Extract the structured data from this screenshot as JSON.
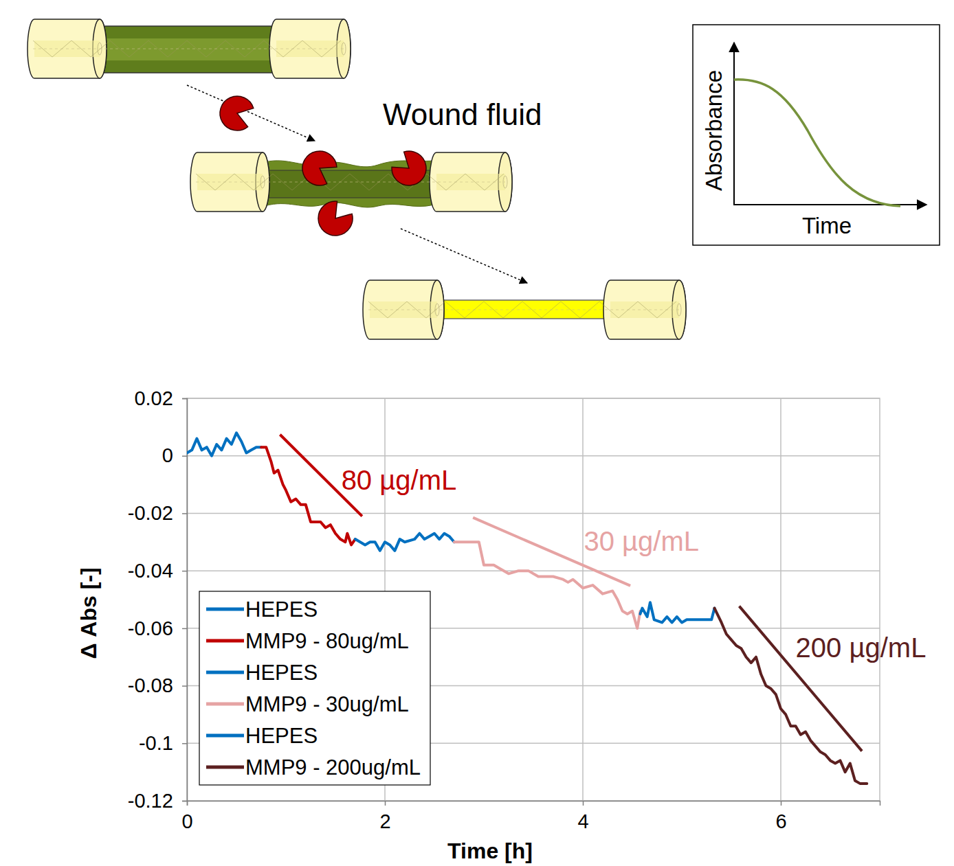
{
  "diagram": {
    "label": "Wound fluid",
    "inset": {
      "x_label": "Time",
      "y_label": "Absorbance"
    }
  },
  "chart_data": {
    "type": "line",
    "x_label": "Time [h]",
    "y_label": "Δ Abs [-]",
    "xlim": [
      0,
      7
    ],
    "xticks": [
      0,
      2,
      4,
      6
    ],
    "ylim": [
      -0.12,
      0.02
    ],
    "yticks": [
      -0.12,
      -0.1,
      -0.08,
      -0.06,
      -0.04,
      -0.02,
      0,
      0.02
    ],
    "grid": true,
    "legend": "lower left",
    "series": [
      {
        "name": "HEPES",
        "color": "#0070c0",
        "x": [
          0,
          0.05,
          0.1,
          0.15,
          0.2,
          0.25,
          0.3,
          0.35,
          0.4,
          0.45,
          0.5,
          0.55,
          0.6,
          0.65,
          0.7,
          0.75
        ],
        "values": [
          0.001,
          0.002,
          0.006,
          0.002,
          0.003,
          0,
          0.004,
          0.002,
          0.006,
          0.004,
          0.008,
          0.005,
          0.001,
          0.002,
          0.003,
          0.003
        ]
      },
      {
        "name": "MMP9 - 80ug/mL",
        "color": "#c00000",
        "x": [
          0.75,
          0.8,
          0.85,
          0.88,
          0.92,
          0.97,
          1.0,
          1.05,
          1.1,
          1.15,
          1.2,
          1.25,
          1.35,
          1.4,
          1.45,
          1.5,
          1.55,
          1.6,
          1.62,
          1.66,
          1.7
        ],
        "values": [
          0.003,
          0.003,
          -0.002,
          -0.006,
          -0.005,
          -0.01,
          -0.012,
          -0.016,
          -0.015,
          -0.017,
          -0.017,
          -0.023,
          -0.023,
          -0.025,
          -0.024,
          -0.027,
          -0.029,
          -0.03,
          -0.027,
          -0.031,
          -0.029
        ]
      },
      {
        "name": "HEPES",
        "color": "#0070c0",
        "x": [
          1.7,
          1.75,
          1.8,
          1.85,
          1.9,
          1.95,
          2.0,
          2.05,
          2.1,
          2.15,
          2.2,
          2.3,
          2.35,
          2.4,
          2.45,
          2.5,
          2.55,
          2.6,
          2.65,
          2.7
        ],
        "values": [
          -0.029,
          -0.03,
          -0.031,
          -0.03,
          -0.03,
          -0.033,
          -0.03,
          -0.031,
          -0.033,
          -0.029,
          -0.03,
          -0.029,
          -0.027,
          -0.029,
          -0.028,
          -0.027,
          -0.029,
          -0.027,
          -0.028,
          -0.03
        ]
      },
      {
        "name": "MMP9 - 30ug/mL",
        "color": "#e6a3a3",
        "x": [
          2.7,
          2.95,
          3.0,
          3.1,
          3.15,
          3.25,
          3.35,
          3.45,
          3.55,
          3.7,
          3.8,
          3.85,
          3.9,
          4.0,
          4.1,
          4.2,
          4.3,
          4.35,
          4.4,
          4.45,
          4.5,
          4.55,
          4.58
        ],
        "values": [
          -0.03,
          -0.03,
          -0.038,
          -0.038,
          -0.039,
          -0.041,
          -0.04,
          -0.04,
          -0.042,
          -0.042,
          -0.043,
          -0.044,
          -0.043,
          -0.046,
          -0.045,
          -0.048,
          -0.047,
          -0.05,
          -0.054,
          -0.055,
          -0.054,
          -0.06,
          -0.054
        ]
      },
      {
        "name": "HEPES",
        "color": "#0070c0",
        "x": [
          4.58,
          4.6,
          4.65,
          4.68,
          4.72,
          4.8,
          4.85,
          4.9,
          4.95,
          5.0,
          5.05,
          5.1,
          5.2,
          5.3,
          5.33
        ],
        "values": [
          -0.055,
          -0.053,
          -0.056,
          -0.051,
          -0.057,
          -0.058,
          -0.056,
          -0.058,
          -0.056,
          -0.058,
          -0.057,
          -0.057,
          -0.057,
          -0.057,
          -0.053
        ]
      },
      {
        "name": "MMP9 - 200ug/mL",
        "color": "#5c2020",
        "x": [
          5.33,
          5.4,
          5.45,
          5.5,
          5.55,
          5.6,
          5.65,
          5.7,
          5.75,
          5.8,
          5.85,
          5.9,
          5.95,
          6.0,
          6.05,
          6.1,
          6.15,
          6.2,
          6.25,
          6.3,
          6.4,
          6.45,
          6.5,
          6.55,
          6.6,
          6.65,
          6.7,
          6.75,
          6.8,
          6.87
        ],
        "values": [
          -0.053,
          -0.058,
          -0.062,
          -0.064,
          -0.066,
          -0.067,
          -0.07,
          -0.072,
          -0.07,
          -0.076,
          -0.08,
          -0.081,
          -0.083,
          -0.088,
          -0.09,
          -0.094,
          -0.094,
          -0.097,
          -0.096,
          -0.099,
          -0.103,
          -0.104,
          -0.106,
          -0.107,
          -0.106,
          -0.11,
          -0.107,
          -0.113,
          -0.114,
          -0.114
        ]
      }
    ],
    "annotations": [
      {
        "text": "80 µg/mL",
        "color": "#c00000",
        "x": 1.56,
        "y": -0.0084,
        "line_x": [
          0.94,
          1.77
        ],
        "line_y": [
          0.0074,
          -0.021
        ]
      },
      {
        "text": "30 µg/mL",
        "color": "#e6a3a3",
        "x": 4.01,
        "y": -0.0296,
        "line_x": [
          2.89,
          4.48
        ],
        "line_y": [
          -0.0215,
          -0.0452
        ]
      },
      {
        "text": "200 µg/mL",
        "color": "#5c2020",
        "x": 6.15,
        "y": -0.0667,
        "line_x": [
          5.58,
          6.82
        ],
        "line_y": [
          -0.0523,
          -0.1027
        ]
      }
    ]
  }
}
